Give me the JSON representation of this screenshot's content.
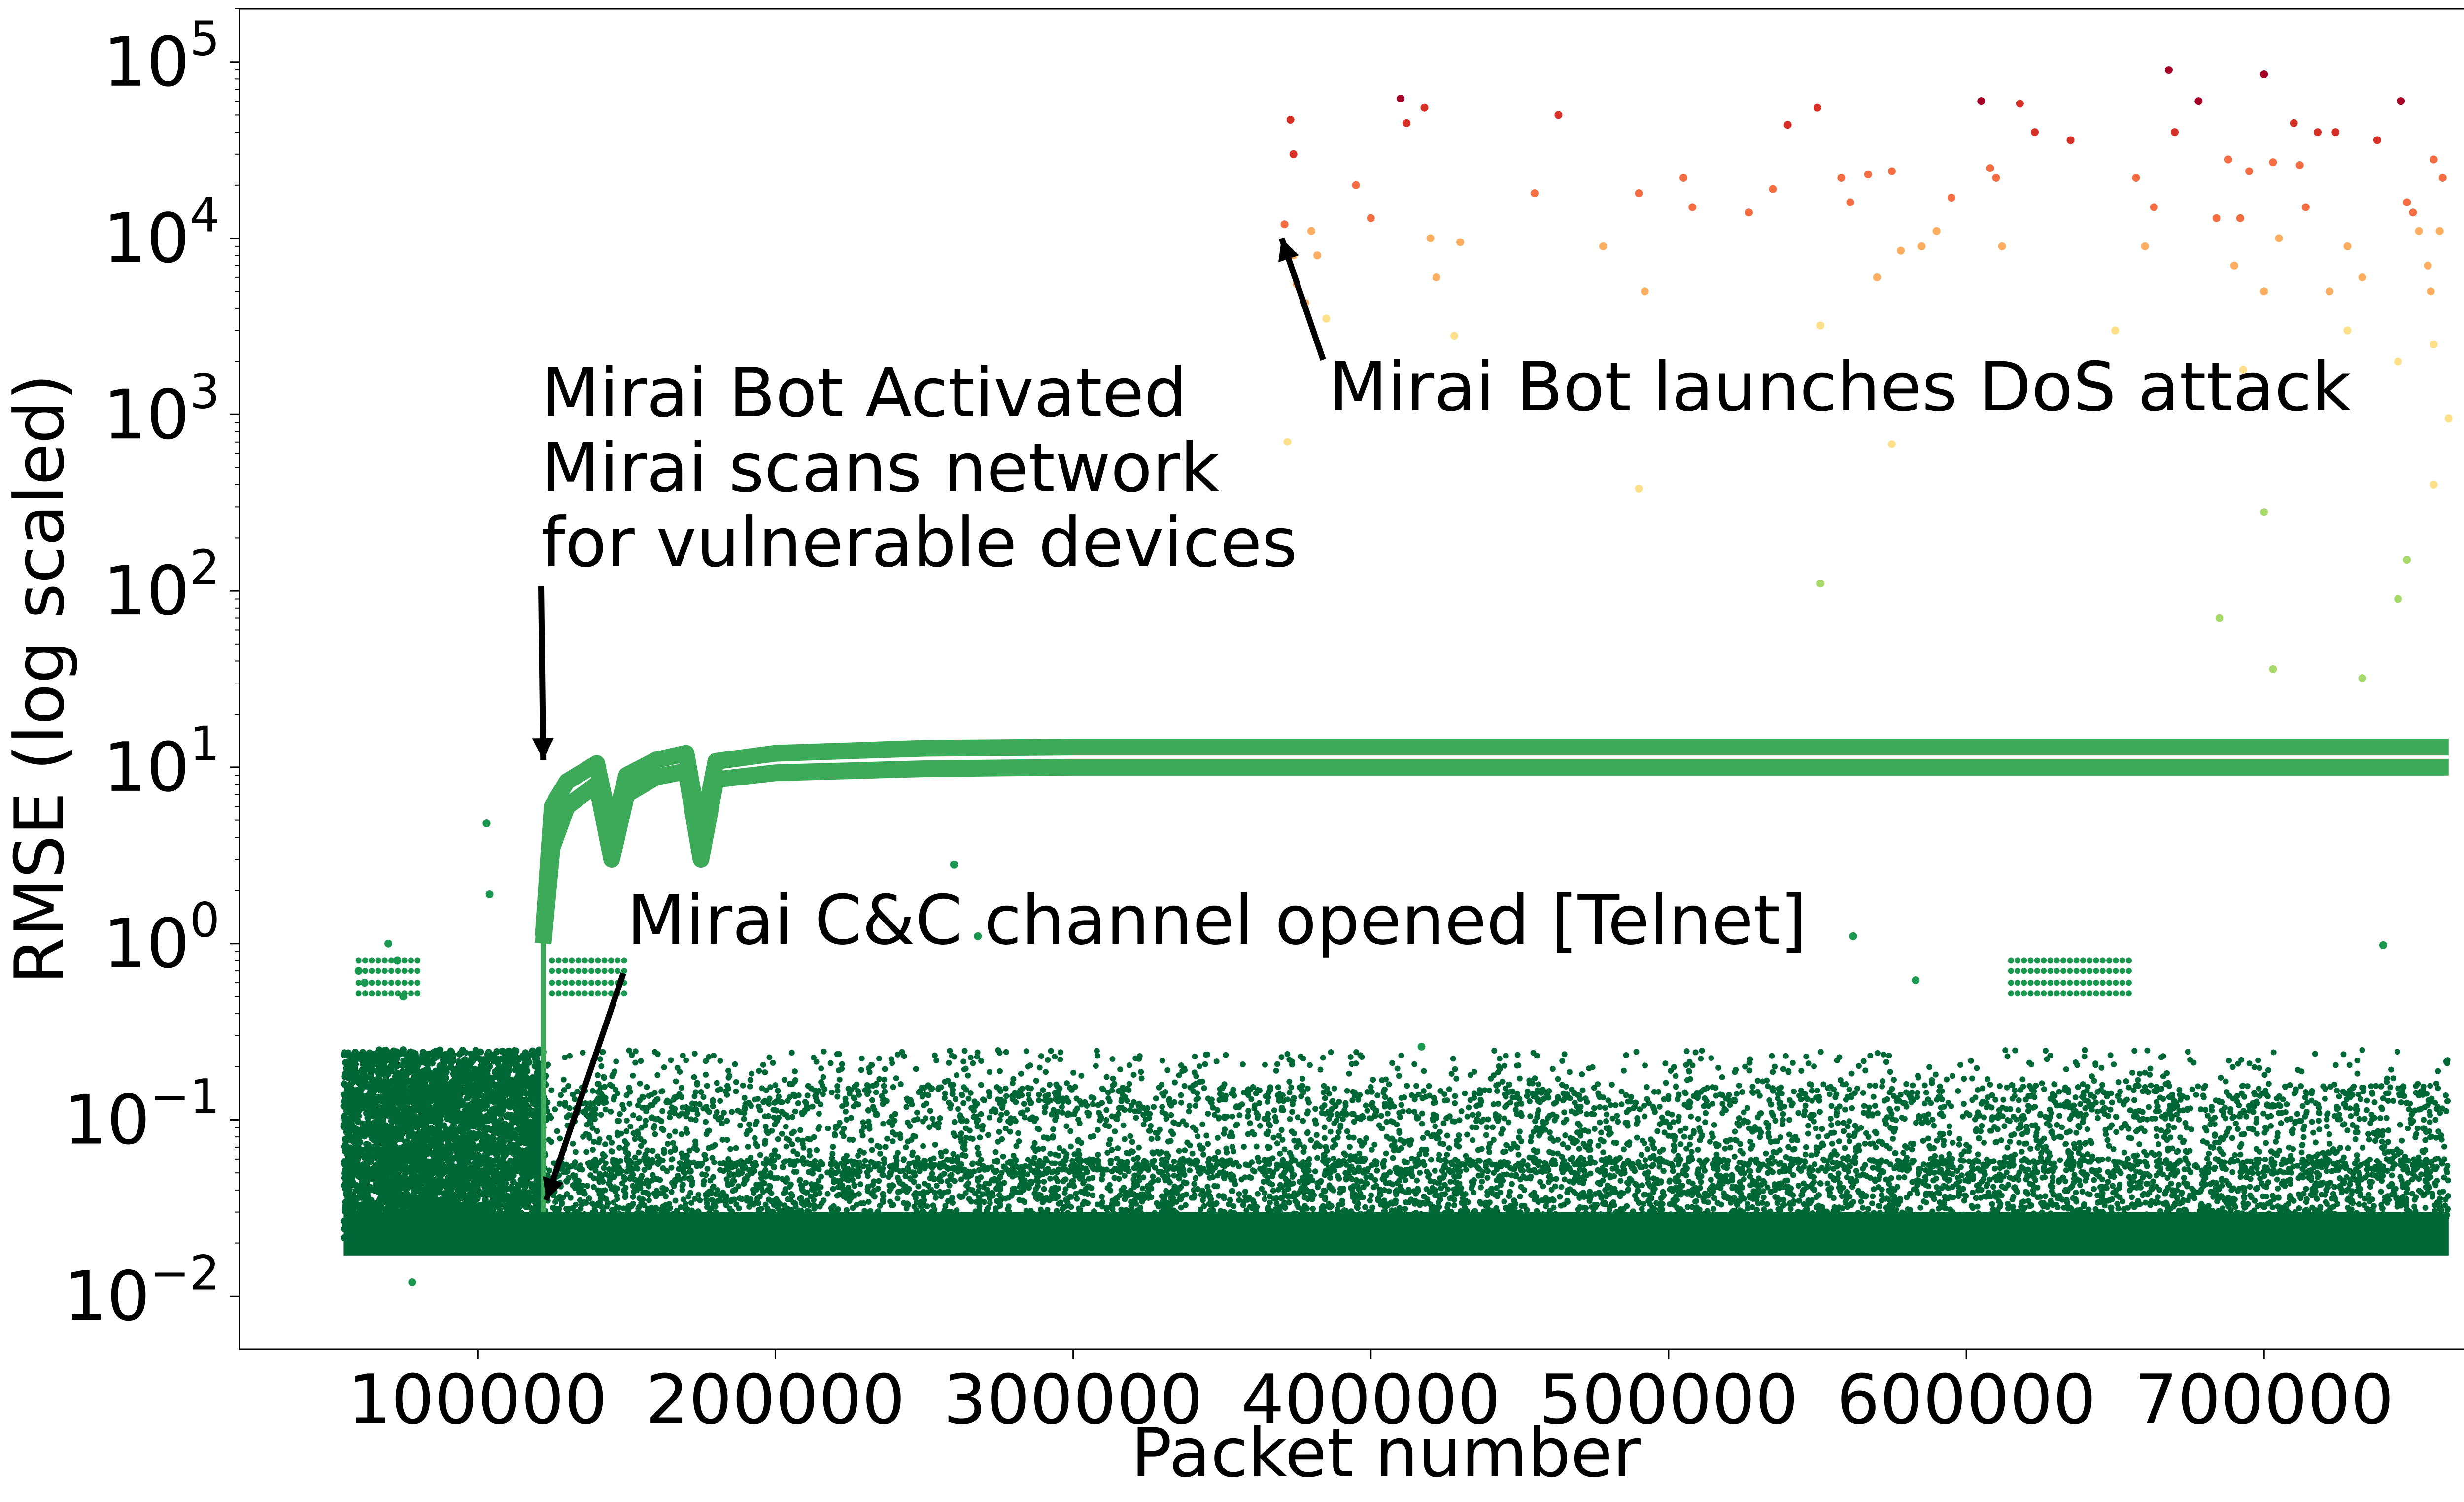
{
  "chart_data": {
    "type": "scatter",
    "title": "",
    "xlabel": "Packet number",
    "ylabel": "RMSE (log scaled)",
    "xlim": [
      20000,
      790000
    ],
    "ylim": [
      0.005,
      200000
    ],
    "yscale": "log",
    "grid": false,
    "x_ticks": [
      100000,
      200000,
      300000,
      400000,
      500000,
      600000,
      700000
    ],
    "x_tick_labels": [
      "100000",
      "200000",
      "300000",
      "400000",
      "500000",
      "600000",
      "700000"
    ],
    "y_ticks": [
      {
        "value": 0.01,
        "base": "10",
        "exp": "−2"
      },
      {
        "value": 0.1,
        "base": "10",
        "exp": "−1"
      },
      {
        "value": 1,
        "base": "10",
        "exp": "0"
      },
      {
        "value": 10,
        "base": "10",
        "exp": "1"
      },
      {
        "value": 100,
        "base": "10",
        "exp": "2"
      },
      {
        "value": 1000,
        "base": "10",
        "exp": "3"
      },
      {
        "value": 10000,
        "base": "10",
        "exp": "4"
      },
      {
        "value": 100000,
        "base": "10",
        "exp": "5"
      }
    ],
    "colors": {
      "background_band": "#006837",
      "green_dark": "#1a9850",
      "green_mid": "#3daa5a",
      "green_light": "#a6d96a",
      "yellow": "#fee08b",
      "orange_light": "#fdae61",
      "orange": "#f46d43",
      "red": "#d73027",
      "dark_red": "#a50026"
    },
    "series": [
      {
        "role": "baseline benign traffic band",
        "x_range": [
          55000,
          762000
        ],
        "y_range": [
          0.017,
          0.03
        ]
      },
      {
        "role": "activation / scanning curves",
        "curves": [
          {
            "x": [
              122000,
              125000,
              130000,
              140000,
              145000,
              150000,
              160000,
              170000,
              175000,
              180000,
              200000,
              250000,
              300000,
              762000
            ],
            "y": [
              1.1,
              6.0,
              8.3,
              10.5,
              4.2,
              9.0,
              11.0,
              12.0,
              4.0,
              10.8,
              12.0,
              12.8,
              13.0,
              13.0
            ]
          },
          {
            "x": [
              122000,
              125000,
              130000,
              140000,
              145000,
              150000,
              160000,
              170000,
              175000,
              180000,
              200000,
              250000,
              300000,
              762000
            ],
            "y": [
              1.0,
              3.5,
              6.0,
              8.0,
              3.0,
              7.0,
              8.8,
              9.5,
              3.0,
              8.5,
              9.3,
              9.8,
              10.0,
              10.0
            ]
          }
        ]
      },
      {
        "role": "DoS attack outliers",
        "points": [
          [
            373000,
            47000
          ],
          [
            374000,
            30000
          ],
          [
            371000,
            12000
          ],
          [
            374000,
            8000
          ],
          [
            375000,
            5500
          ],
          [
            378000,
            4300
          ],
          [
            380000,
            11000
          ],
          [
            382000,
            8000
          ],
          [
            385000,
            3500
          ],
          [
            372000,
            700
          ],
          [
            395000,
            20000
          ],
          [
            400000,
            13000
          ],
          [
            410000,
            62000
          ],
          [
            412000,
            45000
          ],
          [
            418000,
            55000
          ],
          [
            420000,
            10000
          ],
          [
            422000,
            6000
          ],
          [
            430000,
            9500
          ],
          [
            428000,
            2800
          ],
          [
            455000,
            18000
          ],
          [
            463000,
            50000
          ],
          [
            478000,
            9000
          ],
          [
            490000,
            18000
          ],
          [
            492000,
            5000
          ],
          [
            505000,
            22000
          ],
          [
            508000,
            15000
          ],
          [
            527000,
            14000
          ],
          [
            535000,
            19000
          ],
          [
            540000,
            44000
          ],
          [
            550000,
            55000
          ],
          [
            551000,
            3200
          ],
          [
            558000,
            22000
          ],
          [
            561000,
            16000
          ],
          [
            567000,
            23000
          ],
          [
            570000,
            6000
          ],
          [
            575000,
            24000
          ],
          [
            578000,
            8500
          ],
          [
            585000,
            9000
          ],
          [
            590000,
            11000
          ],
          [
            595000,
            17000
          ],
          [
            605000,
            60000
          ],
          [
            608000,
            25000
          ],
          [
            610000,
            22000
          ],
          [
            612000,
            9000
          ],
          [
            618000,
            58000
          ],
          [
            623000,
            40000
          ],
          [
            635000,
            36000
          ],
          [
            650000,
            3000
          ],
          [
            657000,
            22000
          ],
          [
            660000,
            9000
          ],
          [
            663000,
            15000
          ],
          [
            668000,
            90000
          ],
          [
            670000,
            40000
          ],
          [
            678000,
            60000
          ],
          [
            684000,
            13000
          ],
          [
            688000,
            28000
          ],
          [
            692000,
            13000
          ],
          [
            695000,
            24000
          ],
          [
            700000,
            85000
          ],
          [
            703000,
            27000
          ],
          [
            705000,
            10000
          ],
          [
            710000,
            45000
          ],
          [
            712000,
            26000
          ],
          [
            714000,
            15000
          ],
          [
            718000,
            40000
          ],
          [
            724000,
            40000
          ],
          [
            728000,
            9000
          ],
          [
            733000,
            6000
          ],
          [
            738000,
            36000
          ],
          [
            746000,
            60000
          ],
          [
            748000,
            16000
          ],
          [
            755000,
            7000
          ],
          [
            757000,
            28000
          ],
          [
            760000,
            22000
          ],
          [
            759000,
            11000
          ],
          [
            752000,
            11000
          ],
          [
            756000,
            5000
          ],
          [
            757000,
            2500
          ],
          [
            690000,
            7000
          ],
          [
            700000,
            5000
          ],
          [
            722000,
            5000
          ],
          [
            728000,
            3000
          ],
          [
            693000,
            1800
          ],
          [
            700000,
            280
          ],
          [
            745000,
            2000
          ],
          [
            750000,
            14000
          ],
          [
            551000,
            110
          ],
          [
            685000,
            70
          ],
          [
            703000,
            36
          ],
          [
            733000,
            32
          ],
          [
            745000,
            90
          ],
          [
            748000,
            150
          ],
          [
            757000,
            400
          ],
          [
            762000,
            950
          ],
          [
            490000,
            380
          ],
          [
            575000,
            680
          ]
        ]
      },
      {
        "role": "C&C / benign spikes",
        "points": [
          [
            103000,
            4.8
          ],
          [
            104000,
            1.9
          ],
          [
            260000,
            2.8
          ],
          [
            268000,
            1.1
          ],
          [
            562000,
            1.1
          ],
          [
            583000,
            0.62
          ],
          [
            740000,
            0.98
          ],
          [
            417000,
            0.26
          ],
          [
            78000,
            0.012
          ],
          [
            60000,
            0.7
          ],
          [
            70000,
            1.0
          ],
          [
            62000,
            0.6
          ],
          [
            73000,
            0.8
          ],
          [
            75000,
            0.5
          ]
        ]
      }
    ],
    "annotations": [
      {
        "text_lines": [
          "Mirai Bot Activated",
          "Mirai scans network",
          "for vulnerable devices"
        ],
        "arrow_to": [
          122000,
          11
        ]
      },
      {
        "text_lines": [
          "Mirai Bot launches DoS attack"
        ],
        "arrow_to": [
          370000,
          10000
        ]
      },
      {
        "text_lines": [
          "Mirai C&C channel opened [Telnet]"
        ],
        "arrow_to": [
          123000,
          0.035
        ]
      }
    ]
  }
}
